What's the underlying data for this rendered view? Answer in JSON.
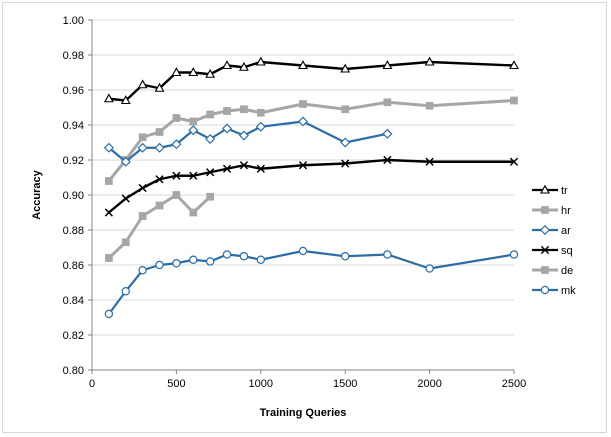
{
  "chart_data": {
    "type": "line",
    "title": "",
    "xlabel": "Training Queries",
    "ylabel": "Accuracy",
    "xlim": [
      0,
      2500
    ],
    "ylim": [
      0.8,
      1.0
    ],
    "x_ticks": [
      "0",
      "500",
      "1000",
      "1500",
      "2000",
      "2500"
    ],
    "y_ticks": [
      "0.80",
      "0.82",
      "0.84",
      "0.86",
      "0.88",
      "0.90",
      "0.92",
      "0.94",
      "0.96",
      "0.98",
      "1.00"
    ],
    "grid": "horizontal",
    "legend_position": "right",
    "series": [
      {
        "name": "tr",
        "color": "#000000",
        "marker": "triangle",
        "x": [
          100,
          200,
          300,
          400,
          500,
          600,
          700,
          800,
          900,
          1000,
          1250,
          1500,
          1750,
          2000,
          2500
        ],
        "values": [
          0.955,
          0.954,
          0.963,
          0.961,
          0.97,
          0.97,
          0.969,
          0.974,
          0.973,
          0.976,
          0.974,
          0.972,
          0.974,
          0.976,
          0.974
        ]
      },
      {
        "name": "hr",
        "color": "#a6a6a6",
        "marker": "square",
        "x": [
          100,
          200,
          300,
          400,
          500,
          600,
          700,
          800,
          900,
          1000,
          1250,
          1500,
          1750,
          2000,
          2500
        ],
        "values": [
          0.908,
          0.92,
          0.933,
          0.936,
          0.944,
          0.942,
          0.946,
          0.948,
          0.949,
          0.947,
          0.952,
          0.949,
          0.953,
          0.951,
          0.954
        ]
      },
      {
        "name": "ar",
        "color": "#2e6da4",
        "marker": "diamond",
        "x": [
          100,
          200,
          300,
          400,
          500,
          600,
          700,
          800,
          900,
          1000,
          1250,
          1500,
          1750
        ],
        "values": [
          0.927,
          0.919,
          0.927,
          0.927,
          0.929,
          0.937,
          0.932,
          0.938,
          0.934,
          0.939,
          0.942,
          0.93,
          0.935
        ]
      },
      {
        "name": "sq",
        "color": "#000000",
        "marker": "x",
        "x": [
          100,
          200,
          300,
          400,
          500,
          600,
          700,
          800,
          900,
          1000,
          1250,
          1500,
          1750,
          2000,
          2500
        ],
        "values": [
          0.89,
          0.898,
          0.904,
          0.909,
          0.911,
          0.911,
          0.913,
          0.915,
          0.917,
          0.915,
          0.917,
          0.918,
          0.92,
          0.919,
          0.919
        ]
      },
      {
        "name": "de",
        "color": "#a6a6a6",
        "marker": "square",
        "x": [
          100,
          200,
          300,
          400,
          500,
          600,
          700
        ],
        "values": [
          0.864,
          0.873,
          0.888,
          0.894,
          0.9,
          0.89,
          0.899
        ]
      },
      {
        "name": "mk",
        "color": "#2e6da4",
        "marker": "circle",
        "x": [
          100,
          200,
          300,
          400,
          500,
          600,
          700,
          800,
          900,
          1000,
          1250,
          1500,
          1750,
          2000,
          2500
        ],
        "values": [
          0.832,
          0.845,
          0.857,
          0.86,
          0.861,
          0.863,
          0.862,
          0.866,
          0.865,
          0.863,
          0.868,
          0.865,
          0.866,
          0.858,
          0.866
        ]
      }
    ]
  }
}
